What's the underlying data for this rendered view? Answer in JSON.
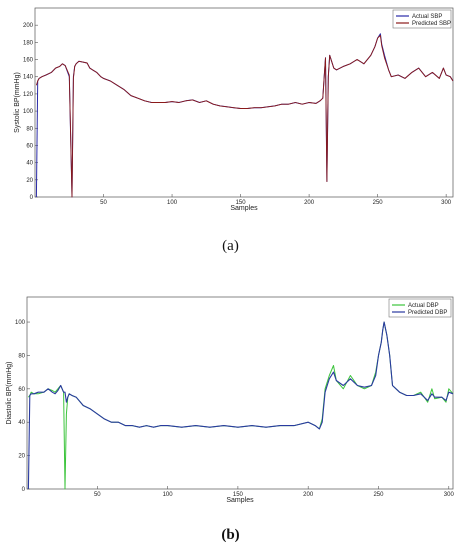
{
  "captions": {
    "a": "(a)",
    "b": "(b)"
  },
  "chart_data": [
    {
      "type": "line",
      "xlabel": "Samples",
      "ylabel": "Systolic BP(mmHg)",
      "xlim": [
        0,
        305
      ],
      "ylim": [
        0,
        220
      ],
      "xticks": [
        50,
        100,
        150,
        200,
        250,
        300
      ],
      "yticks": [
        0,
        20,
        40,
        60,
        80,
        100,
        120,
        140,
        160,
        180,
        200
      ],
      "legend_position": "top-right",
      "colors": {
        "actual": "#2a2aa8",
        "predicted": "#8b1a1a"
      },
      "x": [
        1,
        2,
        3,
        5,
        8,
        12,
        15,
        18,
        20,
        22,
        25,
        27,
        28,
        29,
        30,
        32,
        35,
        38,
        40,
        42,
        45,
        48,
        50,
        55,
        60,
        65,
        70,
        75,
        80,
        85,
        90,
        95,
        100,
        105,
        110,
        115,
        120,
        125,
        130,
        135,
        140,
        145,
        150,
        155,
        160,
        165,
        170,
        175,
        180,
        185,
        190,
        195,
        200,
        205,
        208,
        210,
        211,
        212,
        213,
        214,
        215,
        218,
        220,
        225,
        230,
        235,
        240,
        245,
        248,
        250,
        252,
        253,
        255,
        258,
        260,
        265,
        270,
        275,
        280,
        285,
        290,
        295,
        298,
        300,
        303,
        305
      ],
      "series": [
        {
          "name": "Actual SBP",
          "values": [
            0,
            135,
            138,
            140,
            142,
            145,
            150,
            152,
            155,
            153,
            140,
            0,
            140,
            152,
            155,
            158,
            157,
            156,
            150,
            148,
            145,
            140,
            138,
            135,
            130,
            125,
            118,
            115,
            112,
            110,
            110,
            110,
            111,
            110,
            112,
            113,
            110,
            112,
            108,
            106,
            105,
            104,
            103,
            103,
            104,
            104,
            105,
            106,
            108,
            108,
            110,
            108,
            110,
            109,
            112,
            115,
            140,
            162,
            18,
            140,
            165,
            150,
            148,
            152,
            155,
            160,
            155,
            165,
            175,
            185,
            190,
            178,
            165,
            148,
            140,
            142,
            138,
            145,
            150,
            140,
            145,
            138,
            150,
            142,
            140,
            135
          ]
        },
        {
          "name": "Predicted SBP",
          "values": [
            130,
            135,
            138,
            140,
            142,
            145,
            150,
            152,
            155,
            153,
            142,
            0,
            138,
            152,
            155,
            158,
            157,
            156,
            150,
            148,
            145,
            140,
            138,
            135,
            130,
            125,
            118,
            115,
            112,
            110,
            110,
            110,
            111,
            110,
            112,
            113,
            110,
            112,
            108,
            106,
            105,
            104,
            103,
            103,
            104,
            104,
            105,
            106,
            108,
            108,
            110,
            108,
            110,
            109,
            112,
            115,
            140,
            162,
            18,
            140,
            165,
            150,
            148,
            152,
            155,
            160,
            155,
            165,
            175,
            185,
            188,
            176,
            162,
            148,
            140,
            142,
            138,
            145,
            150,
            140,
            145,
            138,
            150,
            142,
            140,
            135
          ]
        }
      ]
    },
    {
      "type": "line",
      "xlabel": "Samples",
      "ylabel": "Diastolic BP(mmHg)",
      "xlim": [
        0,
        303
      ],
      "ylim": [
        0,
        115
      ],
      "xticks": [
        50,
        100,
        150,
        200,
        250,
        300
      ],
      "yticks": [
        0,
        20,
        40,
        60,
        80,
        100
      ],
      "legend_position": "top-right",
      "colors": {
        "actual": "#3cc43c",
        "predicted": "#2a3aa0"
      },
      "x": [
        1,
        2,
        3,
        5,
        8,
        12,
        15,
        18,
        20,
        22,
        24,
        26,
        27,
        28,
        29,
        30,
        32,
        35,
        40,
        45,
        50,
        55,
        60,
        65,
        70,
        75,
        80,
        85,
        90,
        95,
        100,
        110,
        120,
        130,
        140,
        150,
        160,
        170,
        180,
        190,
        200,
        205,
        208,
        210,
        212,
        215,
        218,
        220,
        225,
        230,
        235,
        240,
        245,
        248,
        250,
        252,
        253,
        254,
        256,
        258,
        260,
        265,
        270,
        275,
        280,
        285,
        288,
        290,
        295,
        298,
        300,
        303
      ],
      "series": [
        {
          "name": "Actual DBP",
          "values": [
            55,
            56,
            58,
            57,
            57,
            58,
            60,
            59,
            58,
            60,
            62,
            58,
            0,
            45,
            55,
            57,
            56,
            55,
            50,
            48,
            45,
            42,
            40,
            40,
            38,
            38,
            37,
            38,
            37,
            38,
            38,
            37,
            38,
            37,
            38,
            37,
            38,
            37,
            38,
            38,
            40,
            38,
            36,
            42,
            60,
            68,
            74,
            65,
            60,
            68,
            62,
            60,
            62,
            70,
            80,
            88,
            95,
            100,
            92,
            80,
            62,
            58,
            56,
            56,
            58,
            52,
            60,
            54,
            55,
            52,
            60,
            57
          ]
        },
        {
          "name": "Predicted DBP",
          "values": [
            0,
            56,
            57,
            57,
            58,
            58,
            60,
            58,
            57,
            59,
            62,
            58,
            58,
            52,
            55,
            57,
            56,
            55,
            50,
            48,
            45,
            42,
            40,
            40,
            38,
            38,
            37,
            38,
            37,
            38,
            38,
            37,
            38,
            37,
            38,
            37,
            38,
            37,
            38,
            38,
            40,
            38,
            36,
            40,
            58,
            66,
            70,
            65,
            62,
            66,
            62,
            61,
            62,
            68,
            80,
            88,
            95,
            100,
            92,
            80,
            62,
            58,
            56,
            56,
            57,
            53,
            57,
            55,
            55,
            53,
            58,
            57
          ]
        }
      ]
    }
  ]
}
